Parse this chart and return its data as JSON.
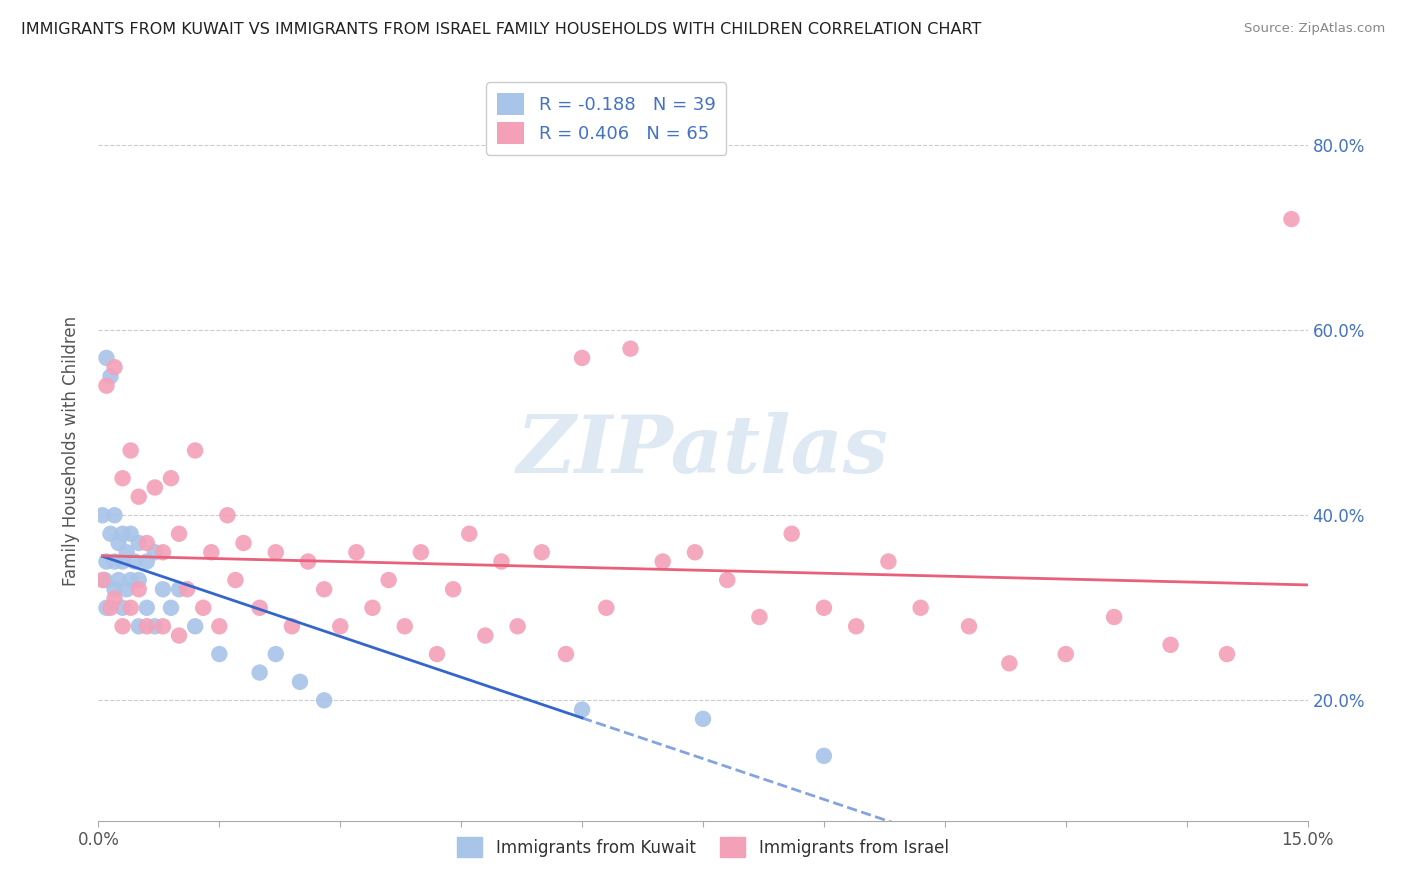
{
  "title": "IMMIGRANTS FROM KUWAIT VS IMMIGRANTS FROM ISRAEL FAMILY HOUSEHOLDS WITH CHILDREN CORRELATION CHART",
  "source": "Source: ZipAtlas.com",
  "ylabel": "Family Households with Children",
  "ytick_labels": [
    "80.0%",
    "60.0%",
    "40.0%",
    "20.0%"
  ],
  "ytick_vals": [
    0.8,
    0.6,
    0.4,
    0.2
  ],
  "xlim": [
    0.0,
    0.15
  ],
  "ylim": [
    0.07,
    0.87
  ],
  "legend_kuwait": "R = -0.188   N = 39",
  "legend_israel": "R = 0.406   N = 65",
  "kuwait_color": "#a8c4e8",
  "israel_color": "#f4a0b8",
  "kuwait_line_color": "#3366cc",
  "israel_line_color": "#e8607a",
  "watermark": "ZIPatlas",
  "kuwait_scatter_x": [
    0.0005,
    0.0008,
    0.001,
    0.001,
    0.001,
    0.0015,
    0.0015,
    0.002,
    0.002,
    0.002,
    0.0025,
    0.0025,
    0.003,
    0.003,
    0.003,
    0.0035,
    0.0035,
    0.004,
    0.004,
    0.0045,
    0.005,
    0.005,
    0.005,
    0.006,
    0.006,
    0.007,
    0.007,
    0.008,
    0.009,
    0.01,
    0.012,
    0.015,
    0.02,
    0.022,
    0.025,
    0.028,
    0.06,
    0.075,
    0.09
  ],
  "kuwait_scatter_y": [
    0.4,
    0.33,
    0.57,
    0.35,
    0.3,
    0.55,
    0.38,
    0.4,
    0.35,
    0.32,
    0.37,
    0.33,
    0.38,
    0.35,
    0.3,
    0.36,
    0.32,
    0.38,
    0.33,
    0.35,
    0.37,
    0.33,
    0.28,
    0.35,
    0.3,
    0.36,
    0.28,
    0.32,
    0.3,
    0.32,
    0.28,
    0.25,
    0.23,
    0.25,
    0.22,
    0.2,
    0.19,
    0.18,
    0.14
  ],
  "israel_scatter_x": [
    0.0005,
    0.001,
    0.0015,
    0.002,
    0.002,
    0.003,
    0.003,
    0.004,
    0.004,
    0.005,
    0.005,
    0.006,
    0.006,
    0.007,
    0.008,
    0.008,
    0.009,
    0.01,
    0.01,
    0.011,
    0.012,
    0.013,
    0.014,
    0.015,
    0.016,
    0.017,
    0.018,
    0.02,
    0.022,
    0.024,
    0.026,
    0.028,
    0.03,
    0.032,
    0.034,
    0.036,
    0.038,
    0.04,
    0.042,
    0.044,
    0.046,
    0.048,
    0.05,
    0.052,
    0.055,
    0.058,
    0.06,
    0.063,
    0.066,
    0.07,
    0.074,
    0.078,
    0.082,
    0.086,
    0.09,
    0.094,
    0.098,
    0.102,
    0.108,
    0.113,
    0.12,
    0.126,
    0.133,
    0.14,
    0.148
  ],
  "israel_scatter_y": [
    0.33,
    0.54,
    0.3,
    0.56,
    0.31,
    0.44,
    0.28,
    0.47,
    0.3,
    0.32,
    0.42,
    0.28,
    0.37,
    0.43,
    0.28,
    0.36,
    0.44,
    0.27,
    0.38,
    0.32,
    0.47,
    0.3,
    0.36,
    0.28,
    0.4,
    0.33,
    0.37,
    0.3,
    0.36,
    0.28,
    0.35,
    0.32,
    0.28,
    0.36,
    0.3,
    0.33,
    0.28,
    0.36,
    0.25,
    0.32,
    0.38,
    0.27,
    0.35,
    0.28,
    0.36,
    0.25,
    0.57,
    0.3,
    0.58,
    0.35,
    0.36,
    0.33,
    0.29,
    0.38,
    0.3,
    0.28,
    0.35,
    0.3,
    0.28,
    0.24,
    0.25,
    0.29,
    0.26,
    0.25,
    0.72
  ],
  "kuwait_line_x_solid_end": 0.06,
  "kuwait_line_x_end": 0.15
}
